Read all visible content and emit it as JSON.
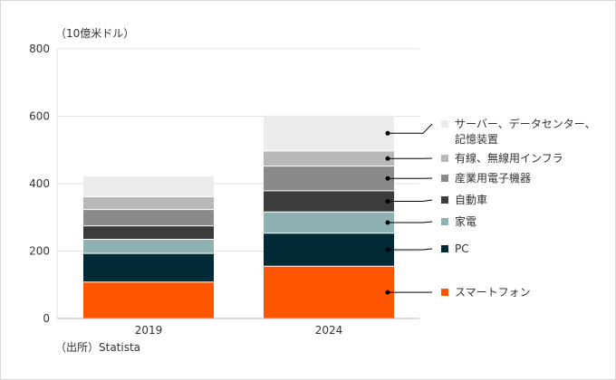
{
  "chart_data": {
    "type": "bar",
    "stacked": true,
    "unit_label": "（10億米ドル）",
    "source": "（出所）Statista",
    "categories": [
      "2019",
      "2024"
    ],
    "ylim": [
      0,
      800
    ],
    "yticks": [
      0,
      200,
      400,
      600,
      800
    ],
    "grid": "horizontal",
    "legend_position": "right",
    "series": [
      {
        "name": "スマートフォン",
        "color": "#ff5500",
        "values": [
          108,
          155
        ]
      },
      {
        "name": "PC",
        "color": "#002b36",
        "values": [
          85,
          98
        ]
      },
      {
        "name": "家電",
        "color": "#8fb1b1",
        "values": [
          42,
          63
        ]
      },
      {
        "name": "自動車",
        "color": "#3c3c3c",
        "values": [
          40,
          63
        ]
      },
      {
        "name": "産業用電子機器",
        "color": "#8a8a8a",
        "values": [
          48,
          73
        ]
      },
      {
        "name": "有線、無線用インフラ",
        "color": "#b8b8b8",
        "values": [
          38,
          45
        ]
      },
      {
        "name_lines": [
          "サーバー、データセンター、",
          "記憶装置"
        ],
        "color": "#ebebeb",
        "values": [
          60,
          105
        ]
      }
    ]
  }
}
